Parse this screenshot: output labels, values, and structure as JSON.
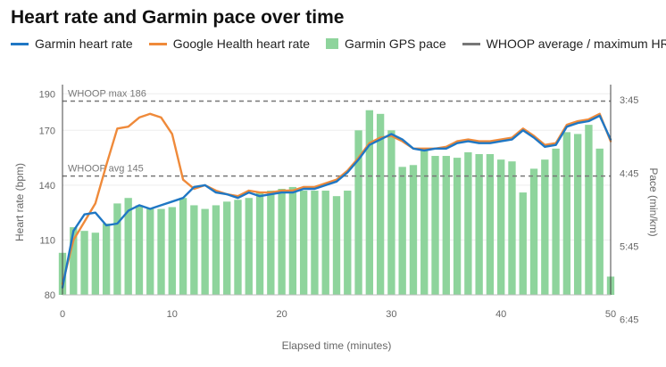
{
  "chart_data": {
    "type": "bar+line",
    "title": "Heart rate and Garmin pace over time",
    "xlabel": "Elapsed time (minutes)",
    "ylabel_left": "Heart rate (bpm)",
    "ylabel_right": "Pace (min/km)",
    "xlim": [
      0,
      50
    ],
    "ylim_left": [
      80,
      195
    ],
    "x_ticks": [
      "0",
      "10",
      "20",
      "30",
      "40",
      "50"
    ],
    "y_ticks_left": [
      "80",
      "110",
      "140",
      "170",
      "190"
    ],
    "y_ticks_left_values": [
      80,
      110,
      140,
      170,
      190
    ],
    "y_ticks_right": [
      "3:45",
      "4:45",
      "5:45",
      "6:45"
    ],
    "y_ticks_right_values": [
      186.6,
      146.6,
      106.6,
      66.6
    ],
    "grid": true,
    "legend_position": "top",
    "series": [
      {
        "name": "Garmin heart rate",
        "type": "line",
        "color": "#1f77c4",
        "x": [
          0,
          1,
          2,
          3,
          4,
          5,
          6,
          7,
          8,
          9,
          10,
          11,
          12,
          13,
          14,
          15,
          16,
          17,
          18,
          19,
          20,
          21,
          22,
          23,
          24,
          25,
          26,
          27,
          28,
          29,
          30,
          31,
          32,
          33,
          34,
          35,
          36,
          37,
          38,
          39,
          40,
          41,
          42,
          43,
          44,
          45,
          46,
          47,
          48,
          49,
          50
        ],
        "values": [
          84,
          115,
          124,
          125,
          118,
          119,
          126,
          129,
          127,
          129,
          131,
          133,
          139,
          140,
          136,
          135,
          133,
          136,
          134,
          135,
          136,
          136,
          138,
          138,
          140,
          142,
          147,
          154,
          162,
          165,
          168,
          165,
          160,
          159,
          160,
          160,
          163,
          164,
          163,
          163,
          164,
          165,
          170,
          166,
          161,
          162,
          172,
          174,
          175,
          178,
          165
        ]
      },
      {
        "name": "Google Health heart rate",
        "type": "line",
        "color": "#ef8a3a",
        "x": [
          0,
          1,
          2,
          3,
          4,
          5,
          6,
          7,
          8,
          9,
          10,
          11,
          12,
          13,
          14,
          15,
          16,
          17,
          18,
          19,
          20,
          21,
          22,
          23,
          24,
          25,
          26,
          27,
          28,
          29,
          30,
          31,
          32,
          33,
          34,
          35,
          36,
          37,
          38,
          39,
          40,
          41,
          42,
          43,
          44,
          45,
          46,
          47,
          48,
          49,
          50
        ],
        "values": [
          86,
          110,
          120,
          130,
          151,
          171,
          172,
          177,
          179,
          177,
          168,
          143,
          138,
          140,
          137,
          135,
          134,
          137,
          136,
          136,
          137,
          137,
          139,
          139,
          141,
          143,
          148,
          155,
          163,
          166,
          167,
          164,
          160,
          160,
          160,
          161,
          164,
          165,
          164,
          164,
          165,
          166,
          171,
          167,
          162,
          163,
          173,
          175,
          176,
          179,
          164
        ]
      },
      {
        "name": "Garmin GPS pace",
        "type": "bar",
        "color": "#8ed49c",
        "x": [
          0,
          1,
          2,
          3,
          4,
          5,
          6,
          7,
          8,
          9,
          10,
          11,
          12,
          13,
          14,
          15,
          16,
          17,
          18,
          19,
          20,
          21,
          22,
          23,
          24,
          25,
          26,
          27,
          28,
          29,
          30,
          31,
          32,
          33,
          34,
          35,
          36,
          37,
          38,
          39,
          40,
          41,
          42,
          43,
          44,
          45,
          46,
          47,
          48,
          49,
          50
        ],
        "values_left_axis_units": [
          103,
          117,
          115,
          114,
          119,
          130,
          133,
          129,
          127,
          127,
          128,
          133,
          129,
          127,
          129,
          131,
          132,
          133,
          136,
          137,
          138,
          139,
          137,
          137,
          137,
          134,
          137,
          170,
          181,
          179,
          170,
          150,
          151,
          160,
          156,
          156,
          155,
          158,
          157,
          157,
          154,
          153,
          136,
          149,
          154,
          160,
          169,
          168,
          173,
          160,
          90
        ]
      },
      {
        "name": "WHOOP average / maximum HR",
        "type": "reference",
        "color": "#777777",
        "lines": [
          {
            "label": "WHOOP max 186",
            "value": 186
          },
          {
            "label": "WHOOP avg 145",
            "value": 145
          }
        ]
      }
    ]
  }
}
